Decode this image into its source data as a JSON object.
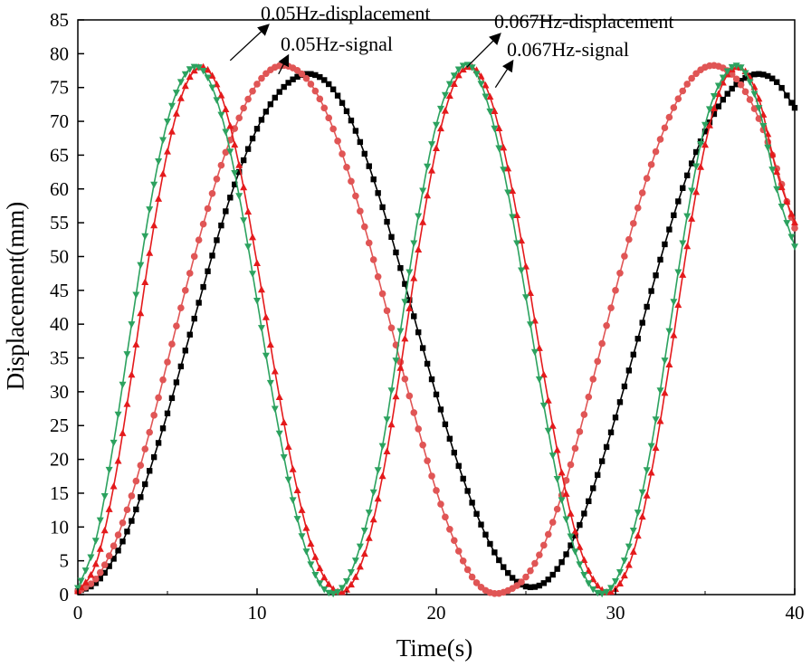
{
  "chart_data": {
    "type": "line",
    "title": "",
    "xlabel": "Time(s)",
    "ylabel": "Displacement(mm)",
    "xlim": [
      0,
      40
    ],
    "ylim": [
      0,
      85
    ],
    "x_ticks": [
      "0",
      "10",
      "20",
      "30",
      "40"
    ],
    "y_ticks": [
      "0",
      "5",
      "10",
      "15",
      "20",
      "25",
      "30",
      "35",
      "40",
      "45",
      "50",
      "55",
      "60",
      "65",
      "70",
      "75",
      "80",
      "85"
    ],
    "grid": false,
    "legend": "none",
    "series": [
      {
        "name": "0.05Hz-displacement",
        "color": "#000000",
        "marker": "square",
        "x": [
          0,
          1,
          2,
          3,
          4,
          5,
          6,
          7,
          8,
          9,
          10,
          11,
          12,
          13,
          14,
          15,
          16,
          17,
          18,
          19,
          20,
          21,
          22,
          23,
          24,
          25,
          26,
          27,
          28,
          29,
          30,
          31,
          32,
          33,
          34,
          35,
          36,
          37,
          38,
          39,
          40
        ],
        "y": [
          0.5,
          1.7,
          5.3,
          10.9,
          18.3,
          26.8,
          36.1,
          45.5,
          54.6,
          62.5,
          68.9,
          73.5,
          76.2,
          77.0,
          75.5,
          71.5,
          65.2,
          57.3,
          48.3,
          38.8,
          29.6,
          21.0,
          13.6,
          7.5,
          3.2,
          1.2,
          1.7,
          4.8,
          10.3,
          17.7,
          26.2,
          35.5,
          44.9,
          54.0,
          62.0,
          68.5,
          73.2,
          76.0,
          77.0,
          75.8,
          72.0
        ]
      },
      {
        "name": "0.05Hz-signal",
        "color": "#e05555",
        "marker": "circle",
        "x": [
          0,
          1,
          2,
          3,
          4,
          5,
          6,
          7,
          8,
          9,
          10,
          11,
          12,
          13,
          14,
          15,
          16,
          17,
          18,
          19,
          20,
          21,
          22,
          23,
          24,
          25,
          26,
          27,
          28,
          29,
          30,
          31,
          32,
          33,
          34,
          35,
          36,
          37,
          38,
          39,
          40
        ],
        "y": [
          0.5,
          2.3,
          7.2,
          14.6,
          24.0,
          34.4,
          45.0,
          54.8,
          63.5,
          70.5,
          75.5,
          78.0,
          77.9,
          75.5,
          70.5,
          63.2,
          54.4,
          44.5,
          34.4,
          24.5,
          15.4,
          8.0,
          2.6,
          0.3,
          0.6,
          2.6,
          7.3,
          14.7,
          24.1,
          34.5,
          45.0,
          54.9,
          63.6,
          70.6,
          75.5,
          78.0,
          77.9,
          75.4,
          70.4,
          63.0,
          54.2
        ]
      },
      {
        "name": "0.067Hz-displacement",
        "color": "#e41a1c",
        "marker": "triangle-up",
        "x": [
          0,
          1,
          2,
          3,
          4,
          5,
          6,
          7,
          8,
          9,
          10,
          11,
          12,
          13,
          14,
          15,
          16,
          17,
          18,
          19,
          20,
          21,
          22,
          23,
          24,
          25,
          26,
          27,
          28,
          29,
          30,
          31,
          32,
          33,
          34,
          35,
          36,
          37,
          38,
          39,
          40
        ],
        "y": [
          0.5,
          4.5,
          16.0,
          32.5,
          50.5,
          65.5,
          75.2,
          78.0,
          73.8,
          63.5,
          49.0,
          33.0,
          18.5,
          7.5,
          1.5,
          0.7,
          6.0,
          17.5,
          33.5,
          51.0,
          66.0,
          75.5,
          78.0,
          73.6,
          63.0,
          48.5,
          32.5,
          18.0,
          7.0,
          1.3,
          0.8,
          6.3,
          18.0,
          34.0,
          51.5,
          66.5,
          75.7,
          77.9,
          73.3,
          62.5,
          55.0
        ]
      },
      {
        "name": "0.067Hz-signal",
        "color": "#2ca25f",
        "marker": "triangle-down",
        "x": [
          0,
          1,
          2,
          3,
          4,
          5,
          6,
          7,
          8,
          9,
          10,
          11,
          12,
          13,
          14,
          15,
          16,
          17,
          18,
          19,
          20,
          21,
          22,
          23,
          24,
          25,
          26,
          27,
          28,
          29,
          30,
          31,
          32,
          33,
          34,
          35,
          36,
          37,
          38,
          39,
          40
        ],
        "y": [
          1.0,
          8.0,
          22.5,
          40.0,
          57.0,
          70.0,
          77.0,
          77.5,
          71.0,
          59.0,
          43.5,
          27.5,
          14.0,
          4.5,
          0.3,
          2.0,
          9.5,
          22.0,
          39.0,
          56.0,
          69.5,
          76.8,
          78.0,
          71.5,
          59.5,
          44.0,
          28.0,
          14.0,
          4.5,
          0.3,
          2.0,
          9.5,
          22.0,
          39.0,
          56.0,
          69.5,
          76.5,
          78.0,
          72.0,
          60.0,
          51.5
        ]
      }
    ],
    "annotations": [
      {
        "text": "0.05Hz-displacement",
        "points_to": {
          "x": 8.5,
          "y": 79
        }
      },
      {
        "text": "0.05Hz-signal",
        "points_to": {
          "x": 11.2,
          "y": 77
        }
      },
      {
        "text": "0.067Hz-displacement",
        "points_to": {
          "x": 21.7,
          "y": 78
        }
      },
      {
        "text": "0.067Hz-signal",
        "points_to": {
          "x": 23.3,
          "y": 75
        }
      }
    ]
  }
}
